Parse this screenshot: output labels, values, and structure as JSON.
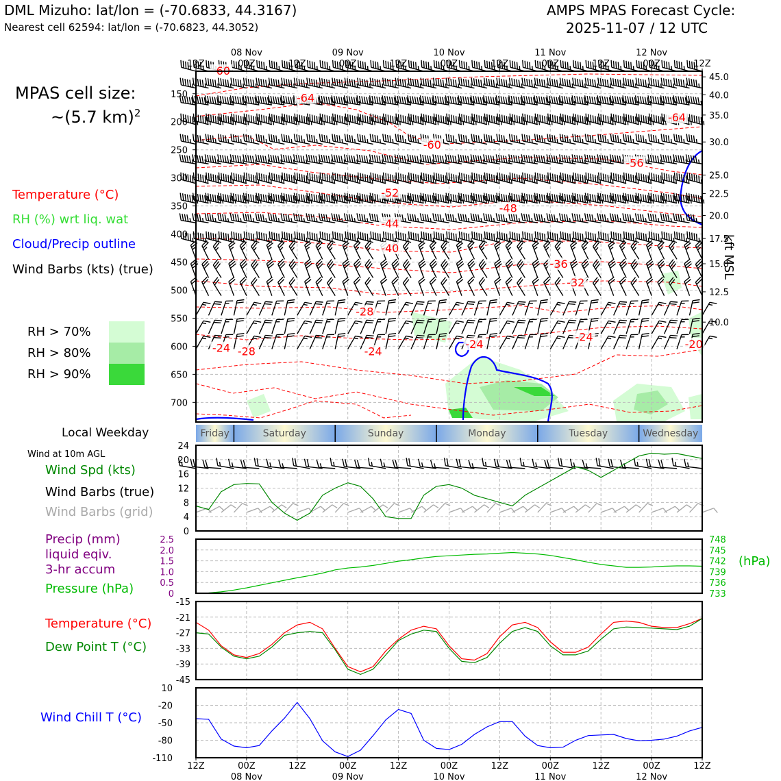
{
  "header": {
    "title_left": "DML Mizuho: lat/lon = (-70.6833, 44.3167)",
    "subtitle_left": "Nearest cell 62594: lat/lon = (-70.6823, 44.3052)",
    "title_right_1": "AMPS MPAS Forecast Cycle:",
    "title_right_2": "2025-11-07 / 12 UTC"
  },
  "cell_size": {
    "line1": "MPAS cell size:",
    "line2": "~(5.7 km)",
    "exp": "2"
  },
  "legend": {
    "temperature": "Temperature (°C)",
    "rh": "RH (%) wrt liq. wat",
    "cloud": "Cloud/Precip outline",
    "wind": "Wind Barbs (kts) (true)",
    "rh70": "RH > 70%",
    "rh80": "RH > 80%",
    "rh90": "RH > 90%"
  },
  "colors": {
    "temp": "#ff0000",
    "rh": "#33dd33",
    "cloud": "#0000ff",
    "rh70": "#d4fcd4",
    "rh80": "#a6eca6",
    "rh90": "#3ad93a",
    "windspd": "#008800",
    "pressure": "#00bb00",
    "precip": "#800080",
    "dew": "#008800",
    "chill": "#0000ff",
    "grid_barbs": "#aaaaaa"
  },
  "time_axis": {
    "ticks": [
      "12Z",
      "00Z",
      "12Z",
      "00Z",
      "12Z",
      "00Z",
      "12Z",
      "00Z",
      "12Z",
      "00Z",
      "12Z"
    ],
    "dates": [
      "08 Nov",
      "09 Nov",
      "10 Nov",
      "11 Nov",
      "12 Nov"
    ],
    "hours_from_cycle": [
      0,
      12,
      24,
      36,
      48,
      60,
      72,
      84,
      96,
      108,
      120
    ]
  },
  "weekday_bar": {
    "label": "Local Weekday",
    "days": [
      "Friday",
      "Saturday",
      "Sunday",
      "Monday",
      "Tuesday",
      "Wednesday"
    ]
  },
  "wind10m_label": "Wind at 10m AGL",
  "panel_labels": {
    "wind_spd": "Wind Spd (kts)",
    "wind_barbs": "Wind Barbs (true)",
    "wind_barbs_grid": "Wind Barbs (grid)",
    "precip1": "Precip (mm)",
    "precip2": "liquid eqiv.",
    "precip3": "3-hr accum",
    "pressure": "Pressure (hPa)",
    "temp": "Temperature (°C)",
    "dew": "Dew Point T (°C)",
    "chill": "Wind Chill T (°C)",
    "hpa_unit": "(hPa)",
    "kft": "kft MSL"
  },
  "chart_data": [
    {
      "type": "heatmap",
      "panel": "vertical cross-section",
      "y_left_ticks": [
        150,
        200,
        250,
        300,
        350,
        400,
        450,
        500,
        550,
        600,
        650,
        700
      ],
      "y_left_range": [
        110,
        735
      ],
      "y_right_ticks": [
        "45.0",
        "40.0",
        "35.0",
        "30.0",
        "25.0",
        "22.5",
        "20.0",
        "17.5",
        "15.0",
        "12.5",
        "10.0"
      ],
      "y_right_pressure": [
        120,
        152,
        188,
        236,
        295,
        328,
        367,
        408,
        453,
        503,
        557
      ],
      "temperature_labels": [
        {
          "t": 6,
          "p": 110,
          "label": "-60"
        },
        {
          "t": 26,
          "p": 158,
          "label": "-64"
        },
        {
          "t": 114,
          "p": 193,
          "label": "-64"
        },
        {
          "t": 56,
          "p": 242,
          "label": "-60"
        },
        {
          "t": 104,
          "p": 274,
          "label": "-56"
        },
        {
          "t": 46,
          "p": 327,
          "label": "-52"
        },
        {
          "t": 74,
          "p": 355,
          "label": "-48"
        },
        {
          "t": 46,
          "p": 382,
          "label": "-44"
        },
        {
          "t": 46,
          "p": 426,
          "label": "-40"
        },
        {
          "t": 86,
          "p": 454,
          "label": "-36"
        },
        {
          "t": 90,
          "p": 487,
          "label": "-32"
        },
        {
          "t": 40,
          "p": 539,
          "label": "-28"
        },
        {
          "t": 92,
          "p": 584,
          "label": "-24"
        },
        {
          "t": 66,
          "p": 597,
          "label": "-24"
        },
        {
          "t": 6,
          "p": 604,
          "label": "-24"
        },
        {
          "t": 12,
          "p": 610,
          "label": "-28"
        },
        {
          "t": 42,
          "p": 610,
          "label": "-24"
        },
        {
          "t": 118,
          "p": 597,
          "label": "-20"
        }
      ]
    },
    {
      "type": "line",
      "panel": "wind speed 10m",
      "ylabel": "",
      "ylim": [
        0,
        24
      ],
      "yticks": [
        0,
        4,
        8,
        12,
        16,
        20,
        24
      ],
      "x": [
        0,
        3,
        6,
        9,
        12,
        15,
        18,
        21,
        24,
        27,
        30,
        33,
        36,
        39,
        42,
        45,
        48,
        51,
        54,
        57,
        60,
        63,
        66,
        69,
        72,
        75,
        78,
        81,
        84,
        87,
        90,
        93,
        96,
        99,
        102,
        105,
        108,
        111,
        114,
        117,
        120
      ],
      "series": [
        {
          "name": "Wind Spd (kts)",
          "values": [
            7,
            6,
            11,
            13,
            13.3,
            13.2,
            8,
            5,
            3,
            5,
            10,
            12,
            13.5,
            12.5,
            9,
            4,
            3.5,
            3.5,
            10,
            12.5,
            13,
            12,
            10,
            9,
            8,
            7,
            10,
            12,
            14,
            16,
            18,
            17,
            15,
            17,
            19,
            21,
            21.8,
            21.5,
            21.7,
            21,
            20.3
          ]
        }
      ]
    },
    {
      "type": "line",
      "panel": "pressure/precip",
      "ylim_precip": [
        0,
        2.5
      ],
      "yticks_precip": [
        0,
        0.5,
        1.0,
        1.5,
        2.0,
        2.5
      ],
      "ylim_pressure": [
        733,
        748
      ],
      "yticks_pressure": [
        733,
        736,
        739,
        742,
        745,
        748
      ],
      "x": [
        0,
        3,
        6,
        9,
        12,
        15,
        18,
        21,
        24,
        27,
        30,
        33,
        36,
        39,
        42,
        45,
        48,
        51,
        54,
        57,
        60,
        63,
        66,
        69,
        72,
        75,
        78,
        81,
        84,
        87,
        90,
        93,
        96,
        99,
        102,
        105,
        108,
        111,
        114,
        117,
        120
      ],
      "series": [
        {
          "name": "Pressure (hPa)",
          "values": [
            733,
            733.1,
            733.4,
            733.9,
            734.5,
            735.2,
            735.9,
            736.6,
            737.3,
            737.9,
            738.6,
            739.5,
            740,
            740.3,
            740.7,
            741.3,
            741.9,
            742.3,
            742.8,
            743.2,
            743.4,
            743.6,
            743.8,
            743.9,
            744.1,
            744.3,
            744.1,
            743.9,
            743.5,
            742.9,
            742.3,
            741.6,
            741,
            740.6,
            740.2,
            740.2,
            740.3,
            740.5,
            740.6,
            740.6,
            740.5
          ]
        }
      ]
    },
    {
      "type": "line",
      "panel": "temperature/dew point",
      "ylim": [
        -45,
        -15
      ],
      "yticks": [
        -45,
        -39,
        -33,
        -27,
        -21,
        -15
      ],
      "x": [
        0,
        3,
        6,
        9,
        12,
        15,
        18,
        21,
        24,
        27,
        30,
        33,
        36,
        39,
        42,
        45,
        48,
        51,
        54,
        57,
        60,
        63,
        66,
        69,
        72,
        75,
        78,
        81,
        84,
        87,
        90,
        93,
        96,
        99,
        102,
        105,
        108,
        111,
        114,
        117,
        120
      ],
      "series": [
        {
          "name": "Temperature (°C)",
          "values": [
            -23,
            -26,
            -32,
            -35.5,
            -36.5,
            -35,
            -31.5,
            -27,
            -24,
            -23,
            -25.5,
            -33,
            -40,
            -42,
            -40,
            -34,
            -29.5,
            -26,
            -24.5,
            -25.5,
            -32,
            -37,
            -37.5,
            -35,
            -28.5,
            -24,
            -23,
            -25,
            -30.5,
            -34.5,
            -34.5,
            -32.5,
            -27.5,
            -23,
            -22.5,
            -23,
            -24.5,
            -25,
            -25,
            -23.5,
            -21.5
          ]
        },
        {
          "name": "Dew Point T (°C)",
          "values": [
            -27,
            -27.5,
            -32.5,
            -36,
            -37,
            -36,
            -32.5,
            -28,
            -27,
            -26.5,
            -27,
            -33.5,
            -41,
            -43,
            -41,
            -35.5,
            -30,
            -27.5,
            -26,
            -26.5,
            -33,
            -38,
            -38.5,
            -36.5,
            -31,
            -26.5,
            -25,
            -26.5,
            -32,
            -35.5,
            -35.5,
            -34,
            -29.5,
            -25.5,
            -24.8,
            -25,
            -25.2,
            -25.5,
            -25.8,
            -24.5,
            -21.5
          ]
        }
      ]
    },
    {
      "type": "line",
      "panel": "wind chill",
      "ylim": [
        -110,
        10
      ],
      "yticks": [
        -110,
        -80,
        -50,
        -20,
        10
      ],
      "x": [
        0,
        3,
        6,
        9,
        12,
        15,
        18,
        21,
        24,
        27,
        30,
        33,
        36,
        39,
        42,
        45,
        48,
        51,
        54,
        57,
        60,
        63,
        66,
        69,
        72,
        75,
        78,
        81,
        84,
        87,
        90,
        93,
        96,
        99,
        102,
        105,
        108,
        111,
        114,
        117,
        120
      ],
      "series": [
        {
          "name": "Wind Chill T (°C)",
          "values": [
            -43,
            -44,
            -78,
            -90,
            -93,
            -89,
            -64,
            -42,
            -15,
            -43,
            -81,
            -100,
            -108,
            -97,
            -72,
            -45,
            -27,
            -34,
            -80,
            -94,
            -96,
            -87,
            -70,
            -57,
            -48,
            -48,
            -73,
            -89,
            -93,
            -92,
            -80,
            -72,
            -71,
            -70,
            -77,
            -81,
            -80,
            -78,
            -73,
            -64,
            -58
          ]
        }
      ]
    }
  ]
}
